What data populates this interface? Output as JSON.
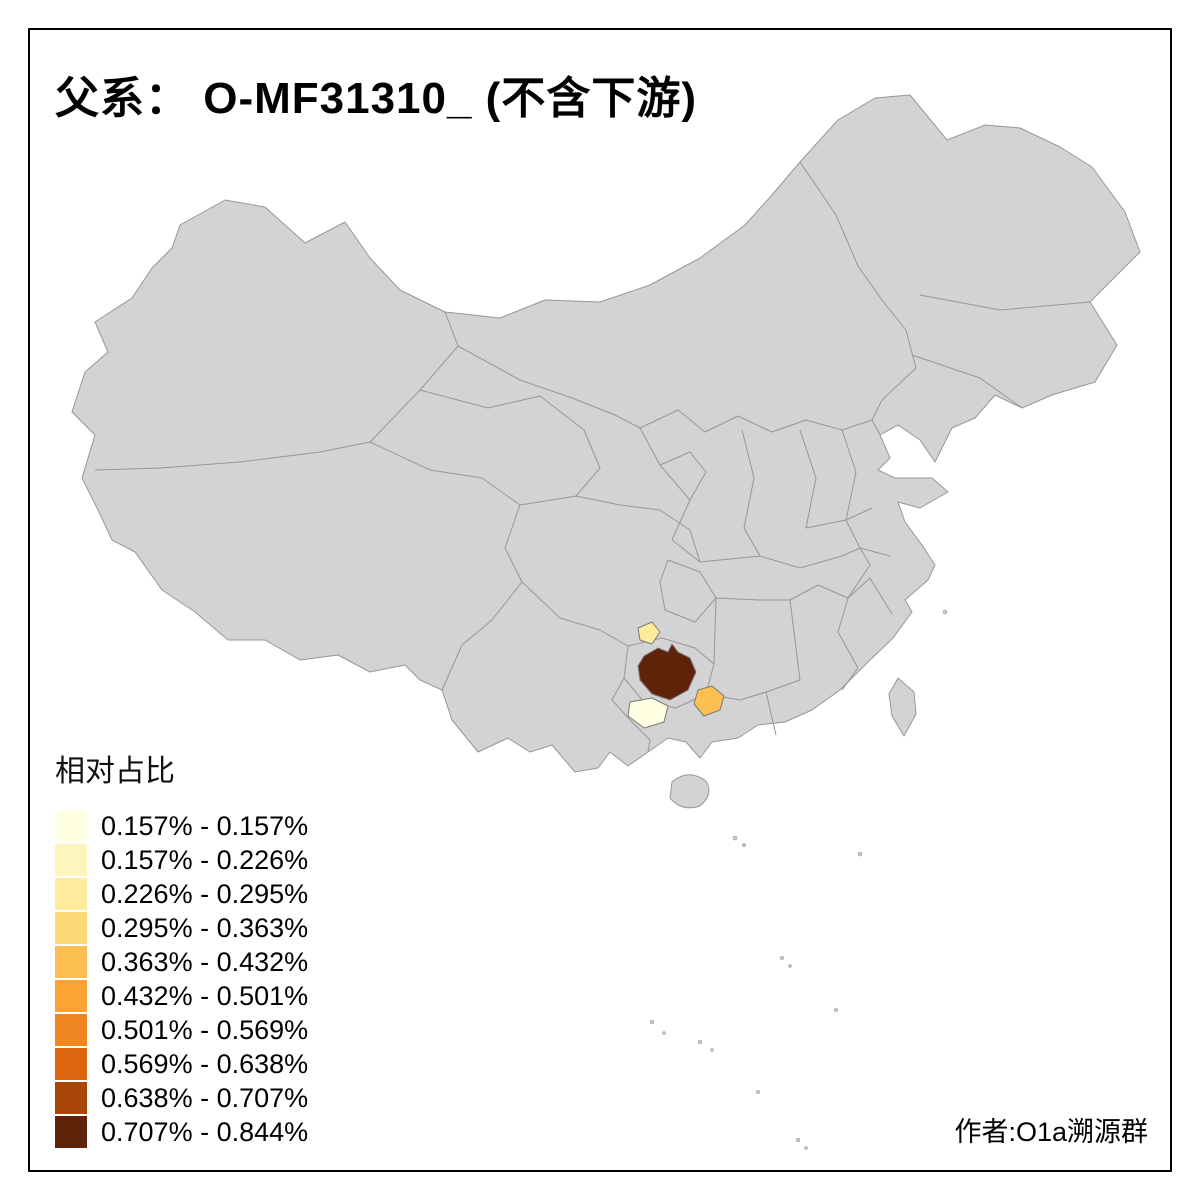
{
  "title": "父系： O-MF31310_ (不含下游)",
  "legend": {
    "title": "相对占比",
    "items": [
      {
        "label": "0.157% - 0.157%",
        "color": "#FFFFE2"
      },
      {
        "label": "0.157% - 0.226%",
        "color": "#FEF5BE"
      },
      {
        "label": "0.226% - 0.295%",
        "color": "#FEEB9B"
      },
      {
        "label": "0.295% - 0.363%",
        "color": "#FED874"
      },
      {
        "label": "0.363% - 0.432%",
        "color": "#FDBF52"
      },
      {
        "label": "0.432% - 0.501%",
        "color": "#FCA335"
      },
      {
        "label": "0.501% - 0.569%",
        "color": "#F0861F"
      },
      {
        "label": "0.569% - 0.638%",
        "color": "#DB660D"
      },
      {
        "label": "0.638% - 0.707%",
        "color": "#A84708"
      },
      {
        "label": "0.707% - 0.844%",
        "color": "#5F2309"
      }
    ]
  },
  "attribution": "作者:O1a溯源群",
  "map": {
    "land_fill": "#D3D3D3",
    "border_color": "#979797",
    "background": "#FFFFFF",
    "regions": [
      {
        "name": "southwest-darkest-region",
        "color": "#5F2309"
      },
      {
        "name": "southwest-cream-region",
        "color": "#FFFFE2"
      },
      {
        "name": "southwest-light-yellow-region",
        "color": "#FEEB9B"
      },
      {
        "name": "southwest-orange-region",
        "color": "#FDBF52"
      }
    ]
  }
}
